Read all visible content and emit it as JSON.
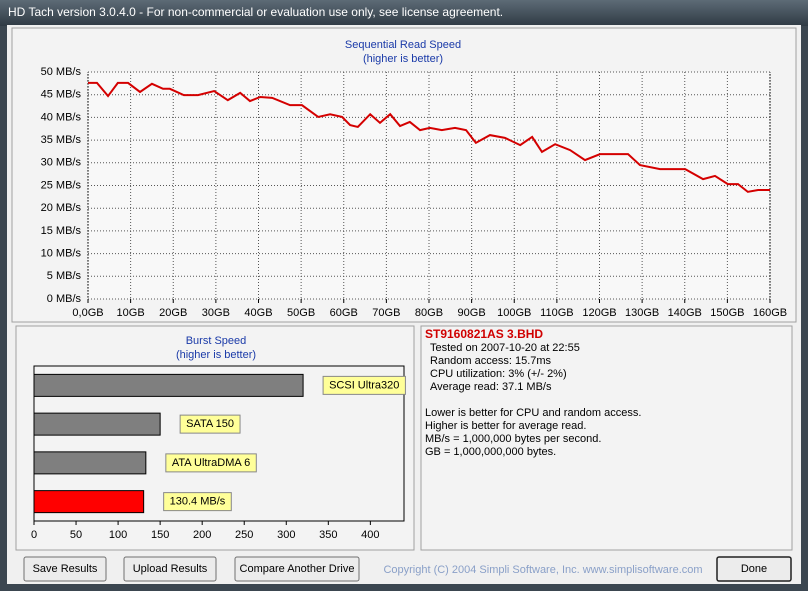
{
  "window_title": "HD Tach version 3.0.4.0  - For non-commercial or evaluation use only, see license agreement.",
  "chart_data": [
    {
      "type": "line",
      "title": "Sequential Read Speed",
      "subtitle": "(higher is better)",
      "color": "#d40000",
      "grid": true,
      "x": [
        0,
        2.1,
        4.7,
        7,
        9.4,
        12.2,
        15,
        17.6,
        19.2,
        22.5,
        25.8,
        29.6,
        32.8,
        35.7,
        38,
        40.4,
        43.2,
        47.4,
        50.2,
        54,
        56.8,
        59.6,
        61.5,
        63.3,
        66.2,
        68.5,
        70.9,
        73.2,
        75.5,
        77.9,
        80.2,
        83,
        86.1,
        88.7,
        91,
        94.3,
        97.8,
        101.4,
        104.2,
        106.5,
        109.6,
        113.1,
        116.6,
        120.1,
        126.7,
        129.5,
        134.2,
        140.1,
        144.3,
        147.1,
        150.1,
        152.5,
        154.8,
        157.2,
        160
      ],
      "values": [
        47.6,
        47.6,
        44.7,
        47.6,
        47.6,
        45.6,
        47.4,
        46.3,
        46.3,
        44.9,
        44.9,
        45.8,
        43.8,
        45.4,
        43.6,
        44.5,
        44.3,
        42.7,
        42.7,
        40.1,
        40.7,
        40.1,
        38.3,
        37.9,
        40.7,
        38.8,
        40.7,
        38.1,
        39,
        37.2,
        37.7,
        37.2,
        37.7,
        37.2,
        34.4,
        36.1,
        35.5,
        33.9,
        35.7,
        32.4,
        34.1,
        32.8,
        30.6,
        31.9,
        31.9,
        29.5,
        28.6,
        28.6,
        26.4,
        27.1,
        25.3,
        25.3,
        23.6,
        24,
        24
      ],
      "xlim": [
        0,
        160
      ],
      "xticks": [
        {
          "value": 0,
          "label": "0,0GB"
        },
        {
          "value": 10,
          "label": "10GB"
        },
        {
          "value": 20,
          "label": "20GB"
        },
        {
          "value": 30,
          "label": "30GB"
        },
        {
          "value": 40,
          "label": "40GB"
        },
        {
          "value": 50,
          "label": "50GB"
        },
        {
          "value": 60,
          "label": "60GB"
        },
        {
          "value": 70,
          "label": "70GB"
        },
        {
          "value": 80,
          "label": "80GB"
        },
        {
          "value": 90,
          "label": "90GB"
        },
        {
          "value": 100,
          "label": "100GB"
        },
        {
          "value": 110,
          "label": "110GB"
        },
        {
          "value": 120,
          "label": "120GB"
        },
        {
          "value": 130,
          "label": "130GB"
        },
        {
          "value": 140,
          "label": "140GB"
        },
        {
          "value": 150,
          "label": "150GB"
        },
        {
          "value": 160,
          "label": "160GB"
        }
      ],
      "ylim": [
        0,
        50
      ],
      "yticks": [
        {
          "value": 0,
          "label": "0 MB/s"
        },
        {
          "value": 5,
          "label": "5 MB/s"
        },
        {
          "value": 10,
          "label": "10 MB/s"
        },
        {
          "value": 15,
          "label": "15 MB/s"
        },
        {
          "value": 20,
          "label": "20 MB/s"
        },
        {
          "value": 25,
          "label": "25 MB/s"
        },
        {
          "value": 30,
          "label": "30 MB/s"
        },
        {
          "value": 35,
          "label": "35 MB/s"
        },
        {
          "value": 40,
          "label": "40 MB/s"
        },
        {
          "value": 45,
          "label": "45 MB/s"
        },
        {
          "value": 50,
          "label": "50 MB/s"
        }
      ]
    },
    {
      "type": "bar",
      "orientation": "horizontal",
      "title": "Burst Speed",
      "subtitle": "(higher is better)",
      "categories": [
        "SCSI Ultra320",
        "SATA 150",
        "ATA UltraDMA 6",
        null
      ],
      "values": [
        320,
        150,
        133,
        130.4
      ],
      "value_labels": [
        null,
        null,
        null,
        "130.4 MB/s"
      ],
      "colors": [
        "#7f7f7f",
        "#7f7f7f",
        "#7f7f7f",
        "#ff0000"
      ],
      "xlim": [
        0,
        440
      ],
      "xticks": [
        0,
        50,
        100,
        150,
        200,
        250,
        300,
        350,
        400
      ]
    }
  ],
  "drive_info": {
    "model": "ST9160821AS 3.BHD",
    "lines": [
      "Tested on 2007-10-20 at 22:55",
      "Random access: 15.7ms",
      "CPU utilization: 3% (+/- 2%)",
      "Average read: 37.1 MB/s"
    ]
  },
  "notes": [
    "Lower is better for CPU and random access.",
    "Higher is better for average read.",
    "MB/s = 1,000,000 bytes per second.",
    "GB = 1,000,000,000 bytes."
  ],
  "buttons": [
    "Save Results",
    "Upload Results",
    "Compare Another Drive",
    "Done"
  ],
  "copyright": "Copyright (C) 2004 Simpli Software, Inc. www.simplisoftware.com"
}
